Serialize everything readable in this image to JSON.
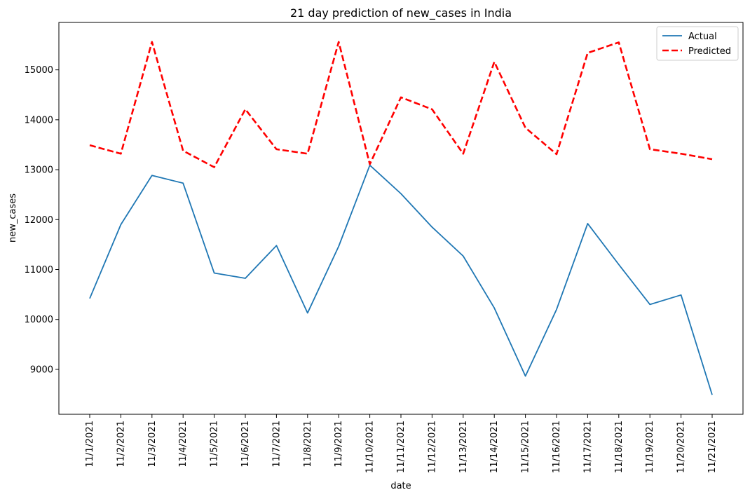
{
  "chart_data": {
    "type": "line",
    "title": "21 day prediction of new_cases in India",
    "xlabel": "date",
    "ylabel": "new_cases",
    "categories": [
      "11/1/2021",
      "11/2/2021",
      "11/3/2021",
      "11/4/2021",
      "11/5/2021",
      "11/6/2021",
      "11/7/2021",
      "11/8/2021",
      "11/9/2021",
      "11/10/2021",
      "11/11/2021",
      "11/12/2021",
      "11/13/2021",
      "11/14/2021",
      "11/15/2021",
      "11/16/2021",
      "11/17/2021",
      "11/18/2021",
      "11/19/2021",
      "11/20/2021",
      "11/21/2021"
    ],
    "yticks": [
      9000,
      10000,
      11000,
      12000,
      13000,
      14000,
      15000
    ],
    "ylim": [
      8100,
      15950
    ],
    "grid": false,
    "legend_position": "top-right",
    "series": [
      {
        "name": "Actual",
        "color": "#1f77b4",
        "style": "solid",
        "values": [
          10420,
          11900,
          12885,
          12730,
          10930,
          10825,
          11480,
          10130,
          11465,
          13090,
          12520,
          11850,
          11270,
          10230,
          8865,
          10200,
          11920,
          11100,
          10300,
          10490,
          8490
        ]
      },
      {
        "name": "Predicted",
        "color": "#ff0000",
        "style": "dashed",
        "values": [
          13490,
          13320,
          15560,
          13380,
          13050,
          14210,
          13410,
          13320,
          15560,
          13110,
          14450,
          14210,
          13320,
          15160,
          13840,
          13310,
          15340,
          15550,
          13410,
          13320,
          13210
        ]
      }
    ]
  }
}
